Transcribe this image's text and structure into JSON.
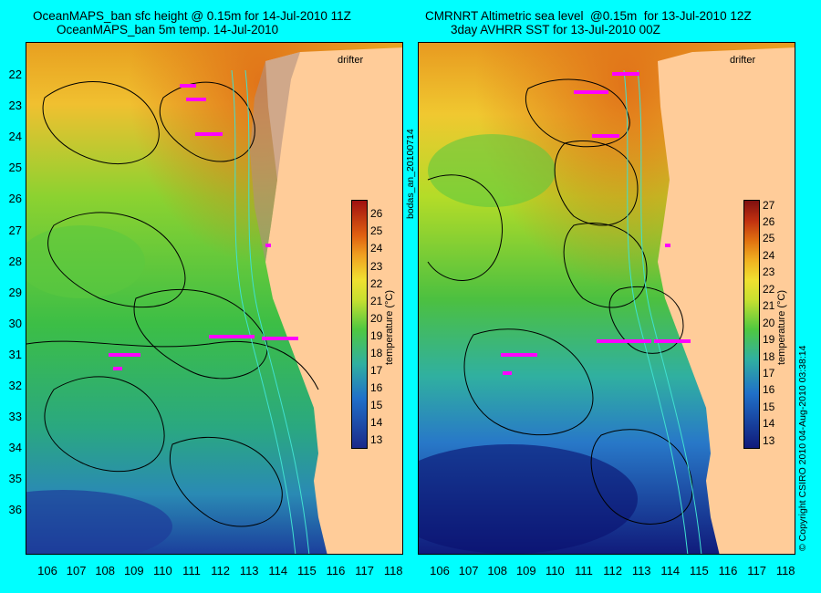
{
  "left": {
    "title_line1": "OceanMAPS_ban sfc height @ 0.15m for 14-Jul-2010 11Z",
    "title_line2": "OceanMAPS_ban 5m temp. 14-Jul-2010",
    "drifter_label": "drifter",
    "colorbar": {
      "label": "temperature (°C)",
      "ticks": [
        "26",
        "25",
        "24",
        "23",
        "22",
        "21",
        "20",
        "19",
        "18",
        "17",
        "16",
        "15",
        "14",
        "13"
      ],
      "range": [
        12.5,
        26.8
      ]
    }
  },
  "right": {
    "title_line1": "CMRNRT Altimetric sea level  @0.15m  for 13-Jul-2010 12Z",
    "title_line2": "3day AVHRR SST for 13-Jul-2010 00Z",
    "drifter_label": "drifter",
    "colorbar": {
      "label": "temperature (°C)",
      "ticks": [
        "27",
        "26",
        "25",
        "24",
        "23",
        "22",
        "21",
        "20",
        "19",
        "18",
        "17",
        "16",
        "15",
        "14",
        "13"
      ],
      "range": [
        12.5,
        27.3
      ]
    }
  },
  "latitude_ticks": [
    "22",
    "23",
    "24",
    "25",
    "26",
    "27",
    "28",
    "29",
    "30",
    "31",
    "32",
    "33",
    "34",
    "35",
    "36"
  ],
  "longitude_ticks": [
    "106",
    "107",
    "108",
    "109",
    "110",
    "111",
    "112",
    "113",
    "114",
    "115",
    "116",
    "117",
    "118"
  ],
  "side_text": "bodas_an_20100714",
  "copyright_text": "© Copyright CSIRO 2010   04-Aug-2010 03:38:14",
  "colors": {
    "background": "#00ffff",
    "land": "#ffcc99",
    "drifter_tracks": "#ff00ff",
    "contours": "#000000",
    "isobaths": "#40e0d0"
  }
}
